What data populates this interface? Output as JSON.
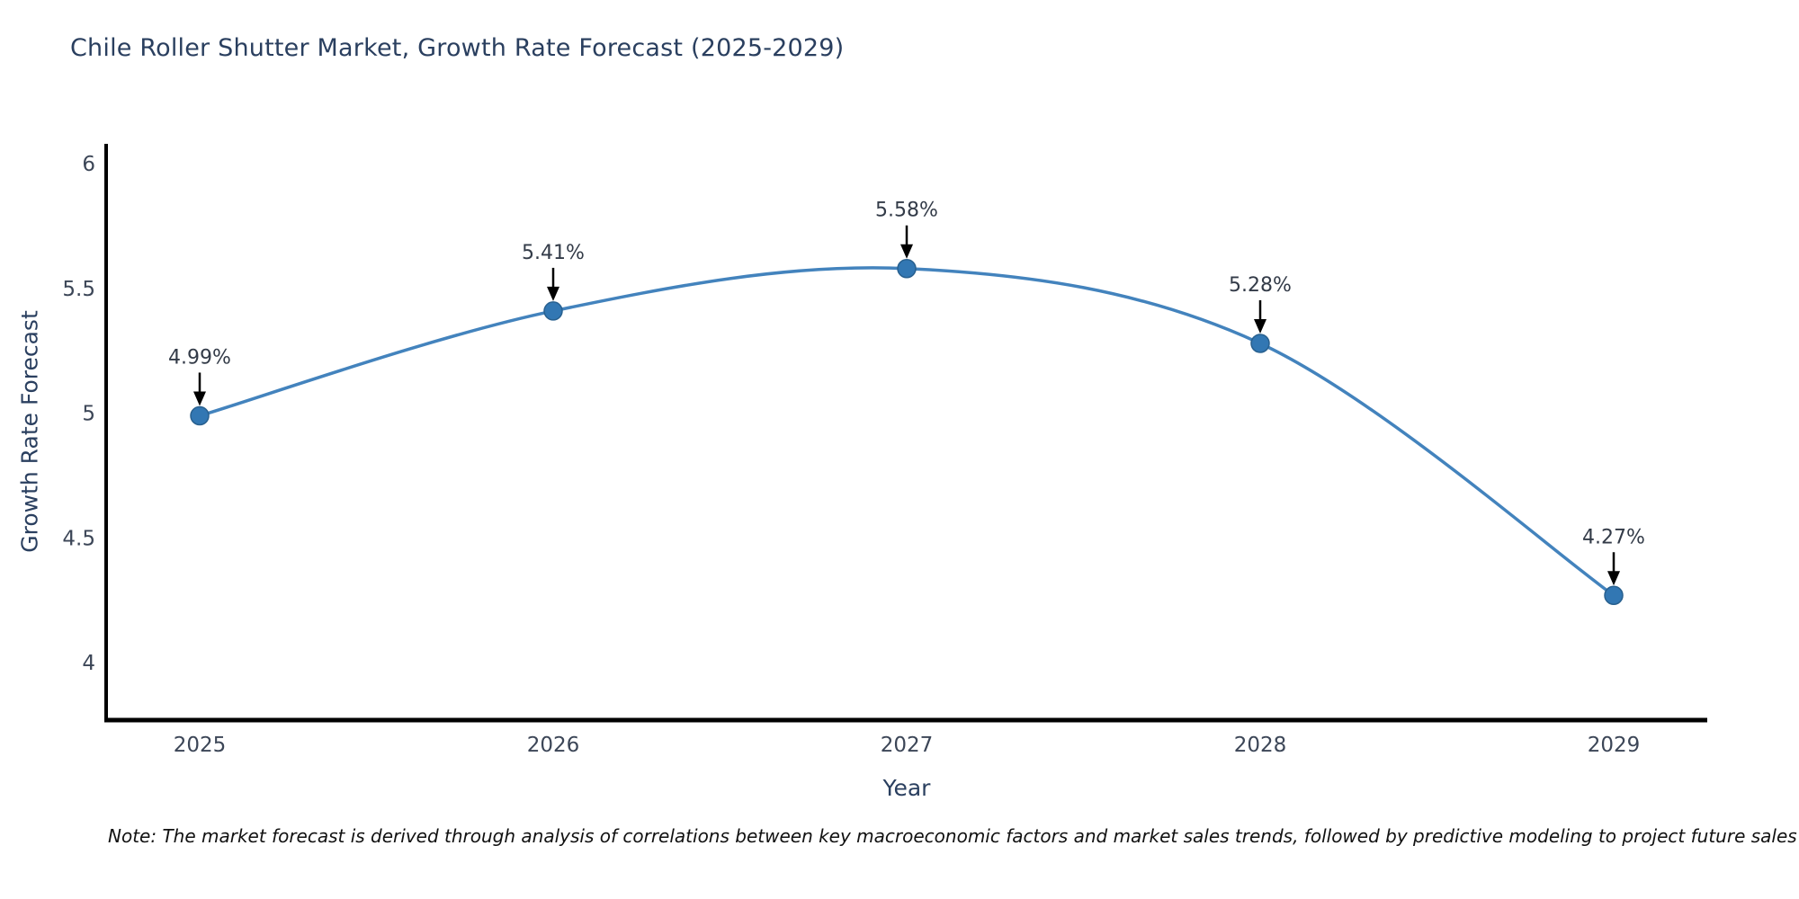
{
  "title": "Chile Roller Shutter Market, Growth Rate Forecast (2025-2029)",
  "note": "Note: The market forecast is derived through analysis of correlations between key macroeconomic factors and market sales trends, followed by predictive modeling to project future sales",
  "chart_data": {
    "type": "line",
    "x": [
      2025,
      2026,
      2027,
      2028,
      2029
    ],
    "series": [
      {
        "name": "Growth Rate Forecast",
        "values": [
          4.99,
          5.41,
          5.58,
          5.28,
          4.27
        ]
      }
    ],
    "point_labels": [
      "4.99%",
      "5.41%",
      "5.58%",
      "5.28%",
      "4.27%"
    ],
    "title": "Chile Roller Shutter Market, Growth Rate Forecast (2025-2029)",
    "xlabel": "Year",
    "ylabel": "Growth Rate Forecast",
    "ylim": [
      3.77,
      6.08
    ],
    "yticks": [
      4,
      4.5,
      5,
      5.5,
      6
    ],
    "grid": false,
    "legend": "none",
    "line_shape": "spline",
    "line_color": "#4383bd",
    "marker_color": "#3277b3",
    "marker_edge_color": "#28608f",
    "axis_color": "#000000",
    "annotation_arrow_color": "#000000"
  }
}
